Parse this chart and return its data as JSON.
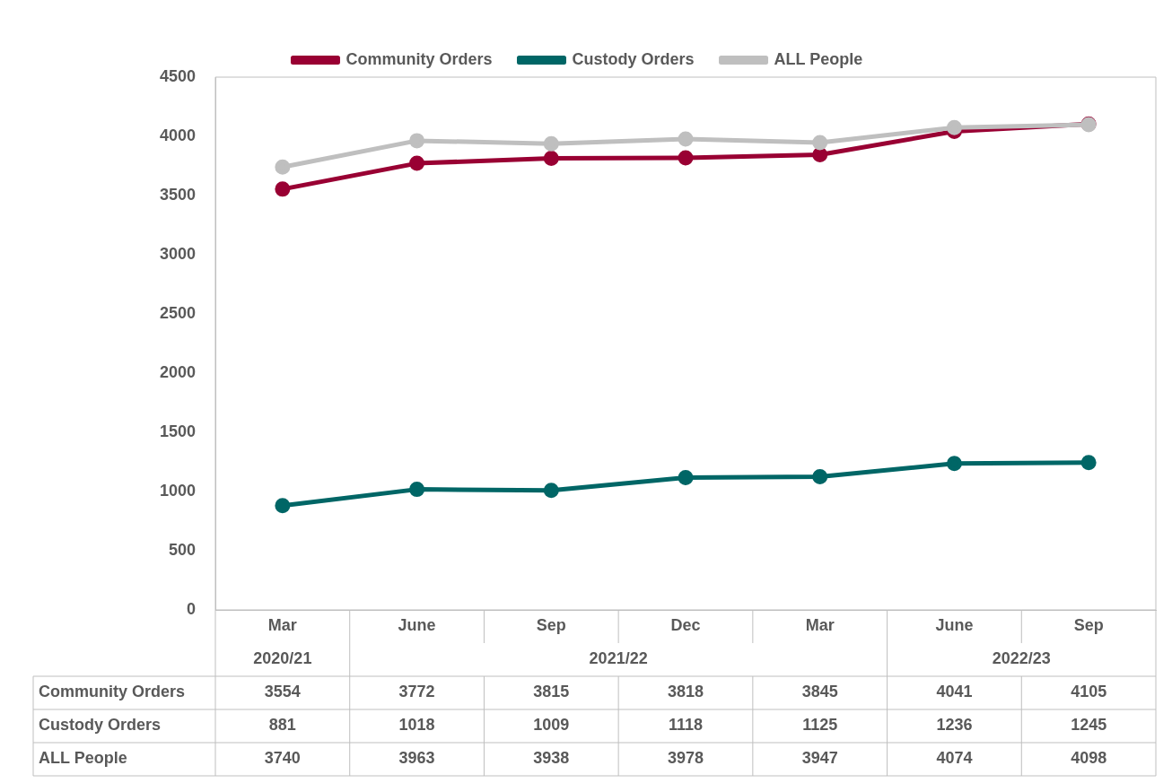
{
  "chart_data": {
    "type": "line",
    "categories": [
      "Mar",
      "June",
      "Sep",
      "Dec",
      "Mar",
      "June",
      "Sep"
    ],
    "series": [
      {
        "name": "Community Orders",
        "color": "#990033",
        "values": [
          3554,
          3772,
          3815,
          3818,
          3845,
          4041,
          4105
        ]
      },
      {
        "name": "Custody Orders",
        "color": "#006666",
        "values": [
          881,
          1018,
          1009,
          1118,
          1125,
          1236,
          1245
        ]
      },
      {
        "name": "ALL People",
        "color": "#bfbfbf",
        "values": [
          3740,
          3963,
          3938,
          3978,
          3947,
          4074,
          4098
        ]
      }
    ],
    "ylim": [
      0,
      4500
    ],
    "yticks": [
      0,
      500,
      1000,
      1500,
      2000,
      2500,
      3000,
      3500,
      4000,
      4500
    ],
    "annotations": [
      "2020/21",
      "2021/22",
      "2022/23"
    ],
    "data_labels": true,
    "grid": false,
    "legend": "top",
    "marker": "circle",
    "line_style": "solid"
  }
}
